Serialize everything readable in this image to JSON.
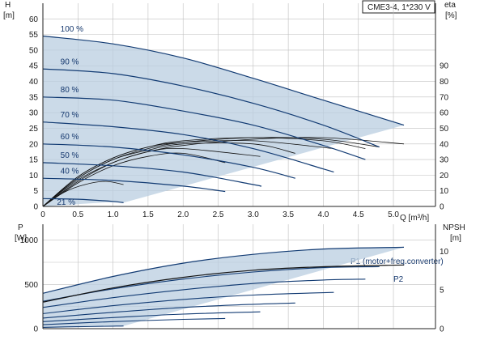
{
  "title_box": "CME3-4, 1*230 V",
  "colors": {
    "curve": "#123b73",
    "region": "#b9cde0",
    "efficiency": "#111111",
    "grid": "#bfbfbf",
    "axis": "#222222"
  },
  "chart_data": [
    {
      "type": "line",
      "panel": "head-efficiency",
      "title": "CME3-4, 1*230 V",
      "xlabel": "Q [m³/h]",
      "ylabel": "H\n[m]",
      "y2label": "eta\n[%]",
      "ylabel_name": "H",
      "ylabel_unit": "[m]",
      "y2label_name": "eta",
      "y2label_unit": "[%]",
      "xlim": [
        0,
        5.6
      ],
      "ylim": [
        0,
        65
      ],
      "y2lim": [
        0,
        130
      ],
      "x_ticks": [
        "0",
        "0.5",
        "1.0",
        "1.5",
        "2.0",
        "2.5",
        "3.0",
        "3.5",
        "4.0",
        "4.5",
        "5.0"
      ],
      "y_ticks": [
        "0",
        "5",
        "10",
        "15",
        "20",
        "25",
        "30",
        "35",
        "40",
        "45",
        "50",
        "55",
        "60"
      ],
      "y2_ticks": [
        "0",
        "10",
        "20",
        "30",
        "40",
        "50",
        "60",
        "70",
        "80",
        "90"
      ],
      "x_unit": "Q [m³/h]",
      "grid": true,
      "series": [
        {
          "name": "100 %",
          "x": [
            0,
            1.0,
            2.0,
            3.0,
            4.0,
            5.15
          ],
          "y": [
            54.5,
            52,
            47.5,
            41,
            34,
            26
          ]
        },
        {
          "name": "90 %",
          "x": [
            0,
            1.0,
            2.0,
            3.0,
            4.0,
            4.8
          ],
          "y": [
            44,
            42.5,
            38.5,
            33,
            26,
            19
          ]
        },
        {
          "name": "80 %",
          "x": [
            0,
            1.0,
            2.0,
            3.0,
            4.0,
            4.6
          ],
          "y": [
            35,
            34,
            30.5,
            26,
            19.5,
            15
          ]
        },
        {
          "name": "70 %",
          "x": [
            0,
            1.0,
            2.0,
            3.0,
            4.0,
            4.15
          ],
          "y": [
            27,
            25.5,
            23,
            18.5,
            12,
            11
          ]
        },
        {
          "name": "60 %",
          "x": [
            0,
            1.0,
            2.0,
            3.0,
            3.6
          ],
          "y": [
            20,
            19,
            16.5,
            12.5,
            9
          ]
        },
        {
          "name": "50 %",
          "x": [
            0,
            1.0,
            2.0,
            3.0,
            3.1
          ],
          "y": [
            14,
            13,
            11,
            7,
            6.5
          ]
        },
        {
          "name": "40 %",
          "x": [
            0,
            1.0,
            2.0,
            2.6
          ],
          "y": [
            9,
            8.3,
            6.5,
            4.8
          ]
        },
        {
          "name": "21 %",
          "x": [
            0,
            0.5,
            1.0,
            1.15
          ],
          "y": [
            2.5,
            2.3,
            1.6,
            1.2
          ]
        }
      ],
      "efficiency_series": [
        {
          "name": "eta 100 %",
          "x": [
            0,
            0.5,
            1.0,
            1.5,
            2.0,
            3.0,
            4.0,
            5.15
          ],
          "y": [
            0,
            16,
            28,
            35,
            39,
            43,
            44,
            40
          ]
        },
        {
          "name": "eta 90 %",
          "x": [
            0,
            0.5,
            1.0,
            1.5,
            2.0,
            3.0,
            4.0,
            4.8
          ],
          "y": [
            0,
            18,
            30,
            37,
            41,
            44,
            43,
            38
          ]
        },
        {
          "name": "eta 80 %",
          "x": [
            0,
            0.5,
            1.0,
            1.5,
            2.0,
            3.0,
            4.0,
            4.6
          ],
          "y": [
            0,
            19,
            31,
            38,
            42,
            44,
            42,
            37
          ]
        },
        {
          "name": "eta 70 %",
          "x": [
            0,
            0.5,
            1.0,
            1.5,
            2.0,
            3.0,
            4.15
          ],
          "y": [
            0,
            19,
            31,
            38,
            41,
            42,
            37
          ]
        },
        {
          "name": "eta 60 %",
          "x": [
            0,
            0.5,
            1.0,
            1.5,
            2.0,
            3.0,
            3.6
          ],
          "y": [
            0,
            18,
            30,
            36,
            40,
            40,
            34
          ]
        },
        {
          "name": "eta 50 %",
          "x": [
            0,
            0.5,
            1.0,
            1.5,
            2.0,
            3.1
          ],
          "y": [
            0,
            17,
            28,
            35,
            37,
            32
          ]
        },
        {
          "name": "eta 40 %",
          "x": [
            0,
            0.5,
            1.0,
            1.5,
            2.0,
            2.6
          ],
          "y": [
            0,
            15,
            26,
            32,
            34,
            28
          ]
        },
        {
          "name": "eta 21 %",
          "x": [
            0,
            0.3,
            0.6,
            0.9,
            1.15
          ],
          "y": [
            0,
            9,
            14,
            16,
            14
          ]
        }
      ],
      "annotations": [
        "100 %",
        "90 %",
        "80 %",
        "70 %",
        "60 %",
        "50 %",
        "40 %",
        "21 %"
      ]
    },
    {
      "type": "line",
      "panel": "power-npsh",
      "xlabel": "",
      "ylabel": "P\n[W]",
      "y2label": "NPSH\n[m]",
      "ylabel_name": "P",
      "ylabel_unit": "[W]",
      "y2label_name": "NPSH",
      "y2label_unit": "[m]",
      "xlim": [
        0,
        5.6
      ],
      "ylim": [
        0,
        1180
      ],
      "y2lim": [
        0,
        13.5
      ],
      "y_ticks": [
        "0",
        "500",
        "1000"
      ],
      "y2_ticks": [
        "0",
        "5",
        "10"
      ],
      "grid": true,
      "series": [
        {
          "name": "P1 (motor+freq.converter)",
          "x": [
            0,
            1.0,
            2.0,
            3.0,
            4.0,
            5.15
          ],
          "y": [
            400,
            590,
            740,
            840,
            900,
            920
          ]
        },
        {
          "name": "P2",
          "x": [
            0,
            1.0,
            2.0,
            3.0,
            4.0,
            5.15
          ],
          "y": [
            300,
            460,
            580,
            660,
            700,
            720
          ]
        }
      ],
      "extra_p1_curves": [
        {
          "x": [
            0,
            1.0,
            2.0,
            3.0,
            4.0,
            4.8
          ],
          "y": [
            310,
            450,
            560,
            640,
            690,
            700
          ]
        },
        {
          "x": [
            0,
            1.0,
            2.0,
            3.0,
            4.0,
            4.6
          ],
          "y": [
            240,
            350,
            440,
            510,
            550,
            560
          ]
        },
        {
          "x": [
            0,
            1.0,
            2.0,
            3.0,
            4.15
          ],
          "y": [
            170,
            260,
            330,
            380,
            410
          ]
        },
        {
          "x": [
            0,
            1.0,
            2.0,
            3.0,
            3.6
          ],
          "y": [
            120,
            185,
            240,
            275,
            290
          ]
        },
        {
          "x": [
            0,
            1.0,
            2.0,
            3.1
          ],
          "y": [
            80,
            125,
            165,
            190
          ]
        },
        {
          "x": [
            0,
            1.0,
            2.0,
            2.6
          ],
          "y": [
            45,
            80,
            105,
            115
          ]
        },
        {
          "x": [
            0,
            0.5,
            1.0,
            1.15
          ],
          "y": [
            15,
            22,
            28,
            30
          ]
        }
      ],
      "legend_labels": [
        "P1 (motor+freq.converter)",
        "P2"
      ]
    }
  ]
}
